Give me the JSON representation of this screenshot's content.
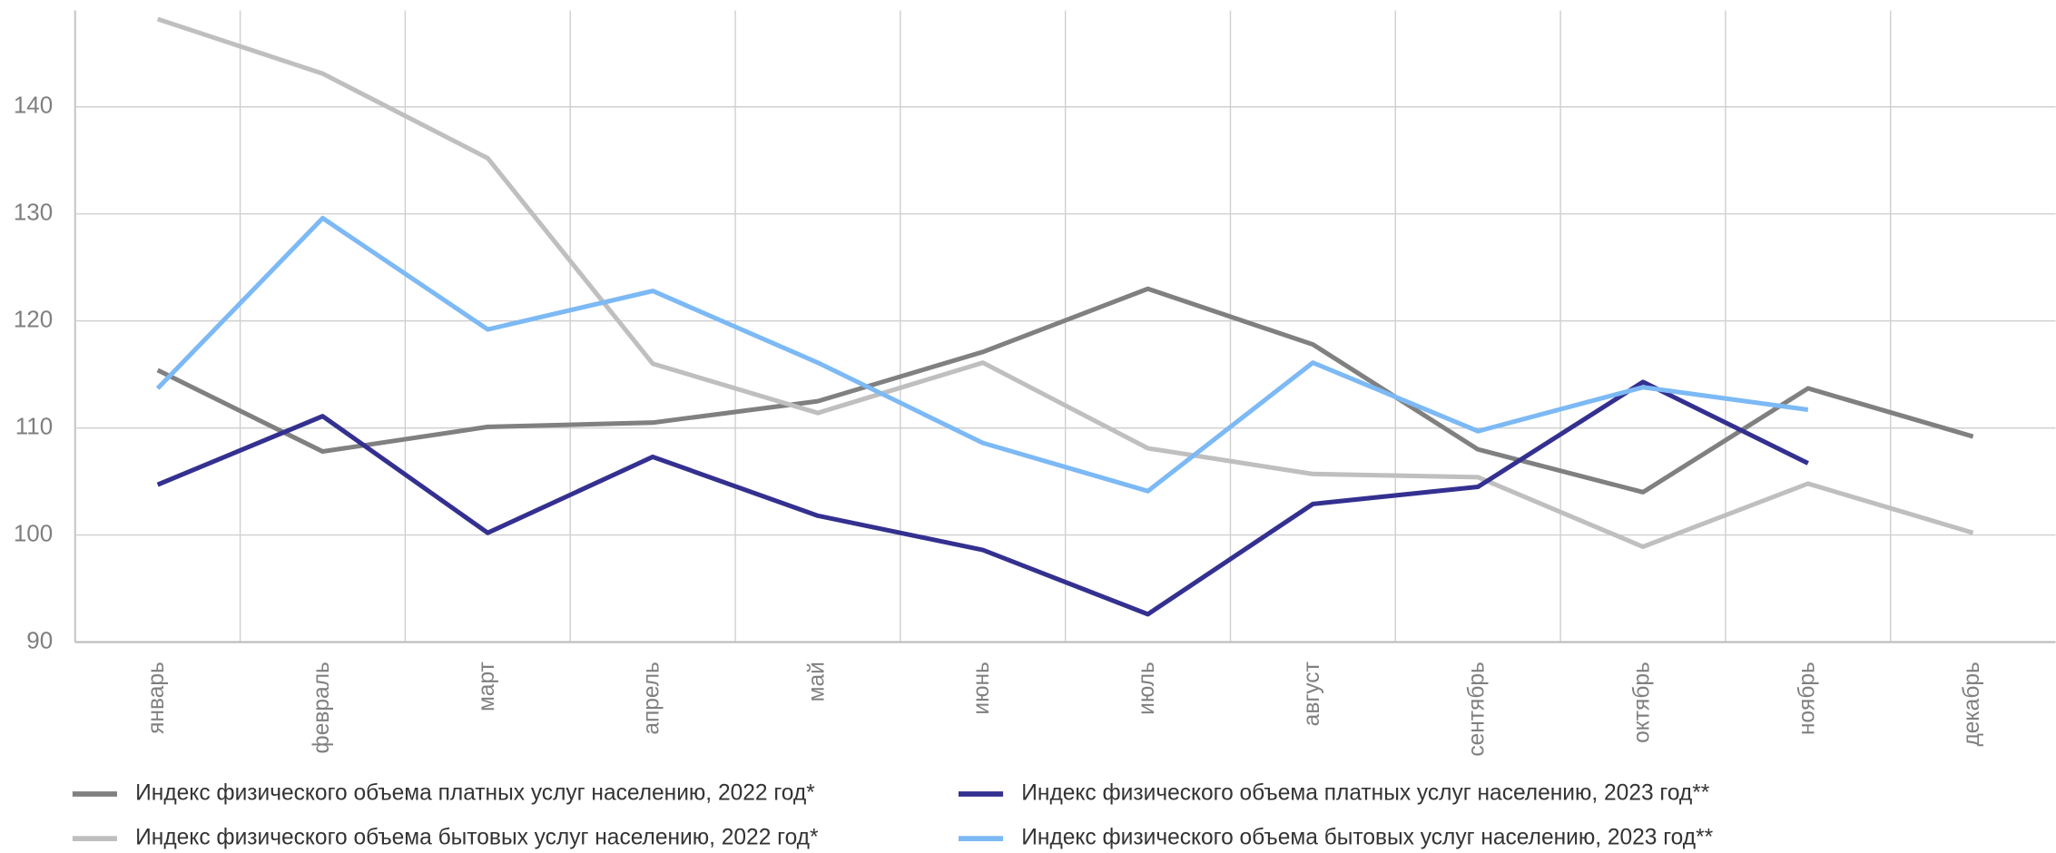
{
  "chart_data": {
    "type": "line",
    "categories": [
      "январь",
      "февраль",
      "март",
      "апрель",
      "май",
      "июнь",
      "июль",
      "август",
      "сентябрь",
      "октябрь",
      "ноябрь",
      "декабрь"
    ],
    "series": [
      {
        "name": "Индекс физического объема платных услуг населению, 2022 год*",
        "color": "#808080",
        "values": [
          115.4,
          107.8,
          110.1,
          110.5,
          112.5,
          117.1,
          123.0,
          117.8,
          108.0,
          104.0,
          113.7,
          109.2
        ]
      },
      {
        "name": "Индекс физического объема бытовых услуг населению, 2022 год*",
        "color": "#bfbfbf",
        "values": [
          148.2,
          143.1,
          135.2,
          116.0,
          111.4,
          116.1,
          108.1,
          105.7,
          105.4,
          98.9,
          104.8,
          100.2
        ]
      },
      {
        "name": "Индекс физического объема платных услуг населению, 2023 год**",
        "color": "#343090",
        "values": [
          104.7,
          111.1,
          100.2,
          107.3,
          101.8,
          98.6,
          92.6,
          102.9,
          104.5,
          114.3,
          106.7,
          null
        ]
      },
      {
        "name": "Индекс физического объема бытовых услуг населению, 2023 год**",
        "color": "#7cb9f5",
        "values": [
          113.7,
          129.6,
          119.2,
          122.8,
          116.1,
          108.6,
          104.1,
          116.1,
          109.7,
          113.8,
          111.7,
          null
        ]
      }
    ],
    "ylim": [
      90,
      149
    ],
    "yticks": [
      90,
      100,
      110,
      120,
      130,
      140
    ],
    "grid": true
  }
}
